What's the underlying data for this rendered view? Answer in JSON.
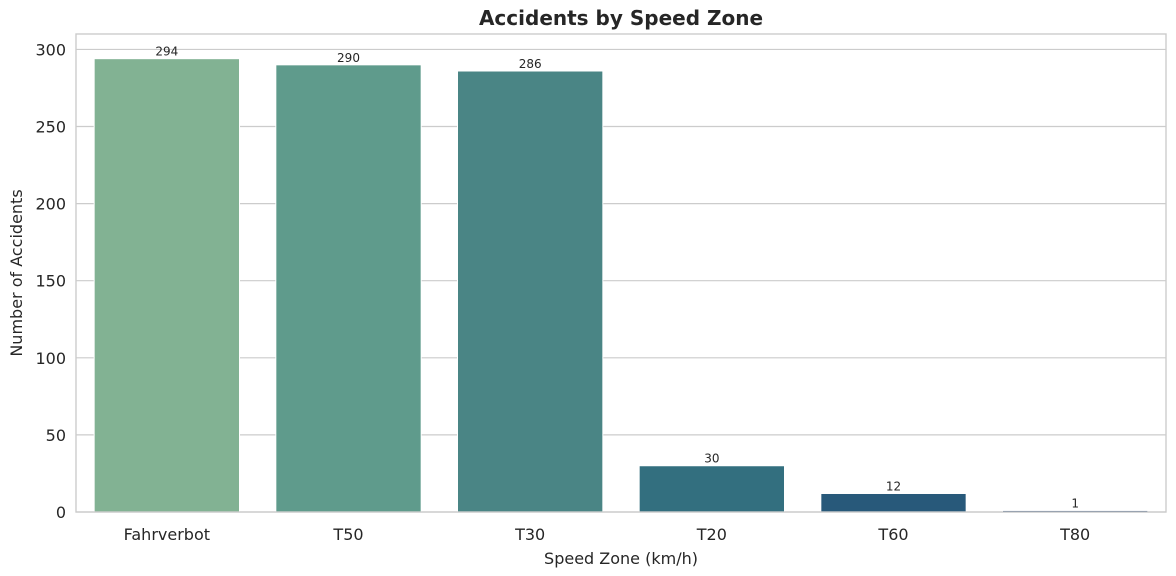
{
  "chart_data": {
    "type": "bar",
    "title": "Accidents by Speed Zone",
    "xlabel": "Speed Zone (km/h)",
    "ylabel": "Number of Accidents",
    "categories": [
      "Fahrverbot",
      "T50",
      "T30",
      "T20",
      "T60",
      "T80"
    ],
    "values": [
      294,
      290,
      286,
      30,
      12,
      1
    ],
    "data_labels": [
      "294",
      "290",
      "286",
      "30",
      "12",
      "1"
    ],
    "ylim": [
      0,
      310
    ],
    "yticks": [
      0,
      50,
      100,
      150,
      200,
      250,
      300
    ],
    "grid": "horizontal",
    "colors": [
      "#82b293",
      "#5f9b8c",
      "#4a8585",
      "#336f7f",
      "#28597a",
      "#22446e"
    ]
  }
}
